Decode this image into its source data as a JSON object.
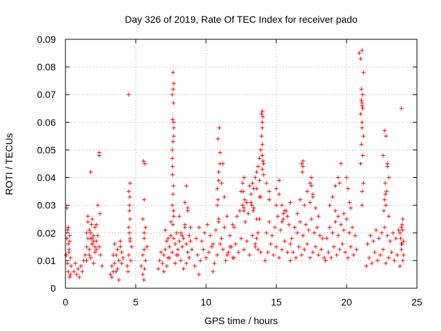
{
  "chart_data": {
    "type": "scatter",
    "title": "Day 326 of 2019, Rate Of TEC Index for receiver pado",
    "xlabel": "GPS time / hours",
    "ylabel": "ROTI / TECUs",
    "xlim": [
      0,
      25
    ],
    "ylim": [
      0,
      0.09
    ],
    "xticks": [
      0,
      5,
      10,
      15,
      20,
      25
    ],
    "xtick_labels": [
      "0",
      "5",
      "10",
      "15",
      "20",
      "25"
    ],
    "yticks": [
      0,
      0.01,
      0.02,
      0.03,
      0.04,
      0.05,
      0.06,
      0.07,
      0.08,
      0.09
    ],
    "ytick_labels": [
      "0",
      "0.01",
      "0.02",
      "0.03",
      "0.04",
      "0.05",
      "0.06",
      "0.07",
      "0.08",
      "0.09"
    ],
    "grid": true,
    "marker": "+",
    "color": "#ff0000",
    "series": [
      {
        "name": "ROTI",
        "x": [
          0.05,
          0.1,
          0.15,
          0.2,
          0.25,
          0.3,
          0.35,
          0.4,
          0.1,
          0.2,
          0.3,
          0.15,
          0.25,
          0.35,
          0.2,
          0.3,
          0.6,
          0.7,
          0.8,
          0.9,
          1.0,
          1.1,
          1.2,
          1.3,
          1.4,
          1.5,
          1.6,
          1.7,
          1.8,
          1.9,
          2.0,
          2.1,
          2.2,
          2.3,
          2.4,
          2.5,
          2.6,
          1.5,
          1.6,
          1.7,
          1.8,
          1.9,
          2.0,
          2.1,
          2.2,
          1.6,
          1.8,
          2.0,
          2.2,
          1.7,
          1.9,
          2.1,
          1.5,
          1.9,
          2.3,
          1.8,
          2.4,
          2.4,
          2.45,
          1.85,
          3.2,
          3.3,
          3.4,
          3.5,
          3.6,
          3.7,
          3.8,
          3.9,
          4.0,
          4.1,
          3.3,
          3.5,
          3.7,
          3.9,
          4.0,
          3.6,
          3.8,
          3.4,
          4.4,
          4.5,
          4.6,
          4.7,
          4.5,
          4.6,
          4.55,
          4.5,
          4.6,
          4.55,
          4.45,
          4.65,
          4.5,
          4.55,
          4.6,
          4.58,
          5.4,
          5.5,
          5.6,
          5.7,
          5.8,
          5.5,
          5.6,
          5.7,
          5.55,
          5.65,
          5.6,
          5.5,
          5.6,
          5.58,
          5.62,
          6.6,
          6.7,
          6.8,
          6.9,
          7.0,
          7.1,
          7.2,
          7.3,
          7.4,
          7.5,
          7.6,
          7.7,
          7.8,
          7.9,
          8.0,
          8.1,
          8.2,
          8.3,
          8.4,
          8.5,
          8.6,
          8.7,
          8.8,
          8.9,
          9.0,
          7.6,
          7.65,
          7.7,
          7.62,
          7.68,
          7.6,
          7.7,
          7.65,
          7.62,
          7.68,
          7.6,
          7.7,
          7.65,
          7.7,
          7.6,
          7.65,
          7.7,
          7.62,
          7.68,
          7.66,
          7.0,
          7.2,
          7.4,
          7.8,
          8.0,
          8.2,
          8.4,
          8.6,
          8.8,
          7.1,
          7.3,
          7.5,
          7.9,
          8.1,
          8.3,
          8.5,
          8.7,
          8.9,
          8.5,
          8.6,
          8.7,
          9.2,
          9.4,
          9.6,
          9.8,
          10.0,
          10.2,
          10.4,
          10.6,
          10.8,
          11.0,
          11.2,
          11.4,
          11.6,
          11.8,
          12.0,
          9.3,
          9.5,
          9.7,
          9.9,
          10.1,
          10.3,
          10.5,
          10.7,
          10.9,
          11.1,
          11.3,
          11.5,
          11.7,
          11.9,
          9.5,
          10.5,
          10.8,
          10.9,
          11.0,
          10.85,
          10.95,
          10.9,
          10.8,
          11.0,
          10.9,
          10.85,
          11.1,
          11.2,
          11.3,
          11.5,
          11.7,
          11.9,
          12.1,
          12.3,
          12.5,
          12.7,
          12.9,
          13.1,
          13.3,
          13.5,
          13.7,
          13.9,
          12.0,
          12.2,
          12.4,
          12.6,
          12.8,
          13.0,
          13.2,
          13.4,
          13.6,
          13.8,
          12.5,
          12.7,
          12.9,
          13.1,
          12.6,
          12.7,
          12.65,
          12.75,
          12.7,
          13.2,
          13.3,
          13.4,
          13.25,
          13.35,
          13.5,
          13.6,
          13.7,
          13.8,
          13.9,
          14.0,
          14.1,
          13.6,
          13.8,
          14.0,
          13.95,
          14.0,
          14.05,
          14.0,
          13.95,
          14.05,
          14.0,
          14.0,
          13.9,
          14.1,
          13.8,
          13.7,
          13.6,
          13.5,
          14.2,
          14.4,
          14.6,
          14.8,
          15.0,
          15.2,
          15.4,
          15.6,
          15.8,
          16.0,
          14.3,
          14.5,
          14.7,
          14.9,
          15.1,
          15.3,
          15.5,
          15.7,
          15.9,
          14.5,
          15.0,
          15.5,
          14.3,
          14.5,
          15.0,
          15.2,
          15.4,
          15.6,
          15.8,
          16.0,
          15.2,
          15.4,
          16.0,
          16.2,
          16.4,
          16.6,
          16.8,
          17.0,
          17.2,
          17.4,
          17.6,
          17.8,
          18.0,
          18.2,
          18.4,
          16.1,
          16.3,
          16.5,
          16.7,
          16.9,
          17.1,
          17.3,
          17.5,
          17.7,
          17.9,
          18.1,
          18.3,
          16.5,
          16.7,
          16.8,
          16.9,
          17.0,
          17.2,
          17.4,
          17.5,
          17.6,
          17.8,
          18.0,
          16.85,
          16.9,
          17.5,
          17.6,
          17.4,
          18.5,
          18.7,
          18.9,
          19.1,
          19.3,
          19.5,
          19.7,
          19.9,
          20.1,
          20.3,
          20.5,
          20.7,
          18.6,
          18.8,
          19.0,
          19.2,
          19.4,
          19.6,
          19.8,
          20.0,
          20.2,
          20.4,
          20.6,
          18.8,
          19.0,
          19.2,
          19.4,
          19.5,
          19.6,
          19.2,
          19.4,
          20.0,
          20.1,
          20.2,
          20.3,
          19.8,
          20.9,
          21.0,
          21.1,
          21.2,
          21.05,
          21.1,
          21.15,
          21.0,
          21.1,
          21.2,
          21.05,
          21.15,
          21.1,
          21.0,
          21.2,
          21.1,
          21.1,
          21.05,
          21.15,
          21.1,
          21.4,
          21.6,
          21.8,
          22.0,
          22.2,
          22.4,
          22.6,
          22.8,
          23.0,
          23.2,
          23.4,
          23.6,
          23.8,
          24.0,
          21.5,
          21.7,
          21.9,
          22.1,
          22.3,
          22.5,
          22.7,
          22.9,
          23.1,
          23.3,
          23.5,
          23.7,
          23.9,
          22.6,
          22.7,
          22.8,
          22.9,
          23.0,
          22.75,
          22.85,
          22.7,
          22.8,
          22.9,
          22.65,
          22.75,
          23.0,
          23.8,
          23.9,
          24.0,
          23.85,
          23.95,
          23.9,
          24.0,
          23.9,
          24.05,
          23.95,
          24.05
        ],
        "y": [
          0.012,
          0.018,
          0.021,
          0.016,
          0.014,
          0.019,
          0.011,
          0.008,
          0.029,
          0.006,
          0.004,
          0.009,
          0.013,
          0.005,
          0.022,
          0.017,
          0.006,
          0.009,
          0.005,
          0.007,
          0.004,
          0.008,
          0.006,
          0.01,
          0.012,
          0.015,
          0.018,
          0.014,
          0.011,
          0.016,
          0.009,
          0.013,
          0.017,
          0.019,
          0.015,
          0.012,
          0.008,
          0.02,
          0.024,
          0.021,
          0.018,
          0.016,
          0.019,
          0.022,
          0.014,
          0.026,
          0.02,
          0.017,
          0.023,
          0.012,
          0.025,
          0.015,
          0.01,
          0.018,
          0.03,
          0.042,
          0.049,
          0.048,
          0.027,
          0.023,
          0.005,
          0.008,
          0.006,
          0.009,
          0.012,
          0.007,
          0.01,
          0.015,
          0.013,
          0.011,
          0.004,
          0.016,
          0.014,
          0.017,
          0.009,
          0.006,
          0.003,
          0.012,
          0.008,
          0.012,
          0.018,
          0.015,
          0.022,
          0.025,
          0.03,
          0.035,
          0.038,
          0.02,
          0.006,
          0.01,
          0.07,
          0.028,
          0.017,
          0.033,
          0.008,
          0.012,
          0.018,
          0.022,
          0.015,
          0.025,
          0.02,
          0.01,
          0.046,
          0.045,
          0.032,
          0.005,
          0.014,
          0.003,
          0.007,
          0.007,
          0.01,
          0.013,
          0.009,
          0.012,
          0.014,
          0.017,
          0.011,
          0.015,
          0.019,
          0.013,
          0.018,
          0.016,
          0.012,
          0.014,
          0.017,
          0.02,
          0.015,
          0.018,
          0.022,
          0.016,
          0.013,
          0.019,
          0.017,
          0.014,
          0.05,
          0.053,
          0.058,
          0.061,
          0.067,
          0.07,
          0.074,
          0.078,
          0.041,
          0.037,
          0.03,
          0.026,
          0.023,
          0.055,
          0.047,
          0.034,
          0.06,
          0.044,
          0.028,
          0.072,
          0.006,
          0.008,
          0.011,
          0.009,
          0.012,
          0.01,
          0.007,
          0.009,
          0.011,
          0.021,
          0.018,
          0.024,
          0.02,
          0.026,
          0.019,
          0.023,
          0.028,
          0.022,
          0.031,
          0.037,
          0.029,
          0.008,
          0.012,
          0.01,
          0.014,
          0.011,
          0.013,
          0.015,
          0.009,
          0.012,
          0.016,
          0.014,
          0.01,
          0.013,
          0.015,
          0.011,
          0.018,
          0.022,
          0.017,
          0.02,
          0.023,
          0.019,
          0.016,
          0.021,
          0.024,
          0.018,
          0.022,
          0.026,
          0.019,
          0.023,
          0.005,
          0.006,
          0.036,
          0.042,
          0.049,
          0.054,
          0.058,
          0.039,
          0.03,
          0.045,
          0.025,
          0.032,
          0.038,
          0.045,
          0.033,
          0.012,
          0.015,
          0.011,
          0.016,
          0.013,
          0.018,
          0.014,
          0.017,
          0.012,
          0.019,
          0.016,
          0.014,
          0.013,
          0.022,
          0.026,
          0.028,
          0.03,
          0.024,
          0.027,
          0.031,
          0.029,
          0.025,
          0.033,
          0.035,
          0.029,
          0.031,
          0.037,
          0.038,
          0.04,
          0.035,
          0.032,
          0.028,
          0.034,
          0.038,
          0.036,
          0.03,
          0.028,
          0.04,
          0.042,
          0.044,
          0.047,
          0.05,
          0.048,
          0.045,
          0.036,
          0.039,
          0.052,
          0.063,
          0.064,
          0.062,
          0.058,
          0.055,
          0.046,
          0.06,
          0.043,
          0.033,
          0.041,
          0.025,
          0.02,
          0.018,
          0.015,
          0.01,
          0.013,
          0.016,
          0.012,
          0.015,
          0.011,
          0.014,
          0.017,
          0.013,
          0.016,
          0.02,
          0.024,
          0.019,
          0.022,
          0.026,
          0.021,
          0.025,
          0.028,
          0.023,
          0.032,
          0.03,
          0.027,
          0.038,
          0.035,
          0.036,
          0.034,
          0.03,
          0.028,
          0.026,
          0.031,
          0.039,
          0.024,
          0.01,
          0.013,
          0.011,
          0.015,
          0.012,
          0.014,
          0.016,
          0.011,
          0.013,
          0.015,
          0.012,
          0.014,
          0.011,
          0.018,
          0.022,
          0.02,
          0.024,
          0.019,
          0.023,
          0.021,
          0.025,
          0.02,
          0.022,
          0.019,
          0.018,
          0.027,
          0.032,
          0.045,
          0.046,
          0.03,
          0.035,
          0.038,
          0.04,
          0.033,
          0.029,
          0.026,
          0.042,
          0.044,
          0.037,
          0.034,
          0.031,
          0.01,
          0.013,
          0.011,
          0.015,
          0.012,
          0.014,
          0.016,
          0.013,
          0.011,
          0.015,
          0.012,
          0.014,
          0.018,
          0.022,
          0.02,
          0.024,
          0.019,
          0.023,
          0.021,
          0.025,
          0.02,
          0.022,
          0.019,
          0.03,
          0.033,
          0.037,
          0.04,
          0.038,
          0.045,
          0.028,
          0.026,
          0.04,
          0.036,
          0.031,
          0.029,
          0.027,
          0.085,
          0.083,
          0.086,
          0.078,
          0.068,
          0.066,
          0.07,
          0.063,
          0.06,
          0.055,
          0.052,
          0.048,
          0.058,
          0.045,
          0.038,
          0.035,
          0.067,
          0.072,
          0.065,
          0.03,
          0.008,
          0.011,
          0.009,
          0.013,
          0.01,
          0.012,
          0.014,
          0.009,
          0.011,
          0.013,
          0.01,
          0.012,
          0.008,
          0.01,
          0.016,
          0.019,
          0.017,
          0.021,
          0.018,
          0.02,
          0.022,
          0.019,
          0.017,
          0.02,
          0.018,
          0.021,
          0.016,
          0.048,
          0.057,
          0.055,
          0.044,
          0.04,
          0.038,
          0.035,
          0.032,
          0.03,
          0.045,
          0.028,
          0.034,
          0.026,
          0.02,
          0.022,
          0.025,
          0.018,
          0.016,
          0.065,
          0.021,
          0.014,
          0.012,
          0.023,
          0.017
        ]
      }
    ]
  }
}
